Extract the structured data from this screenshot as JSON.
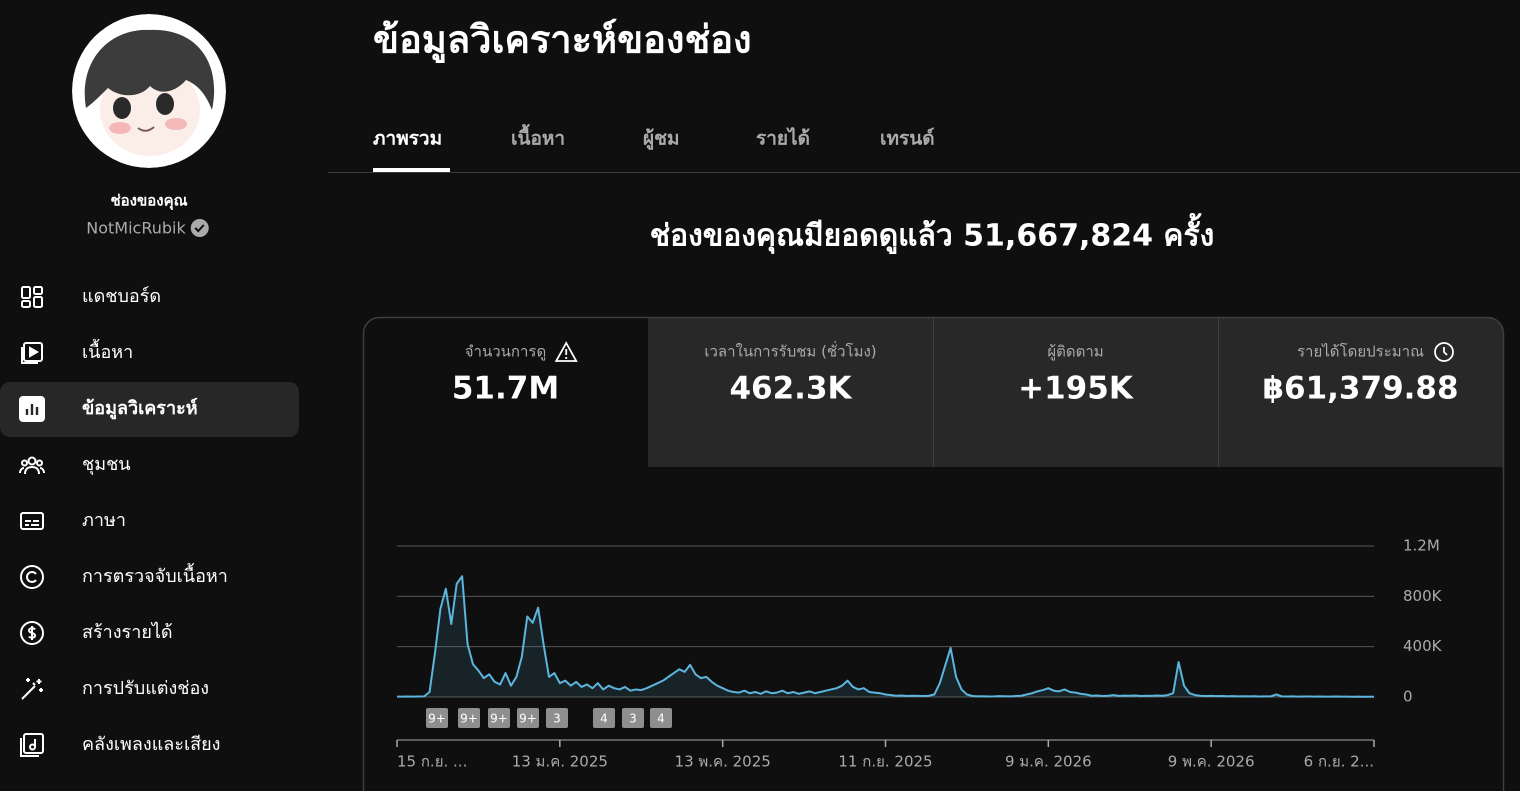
{
  "sidebar": {
    "channel_label": "ช่องของคุณ",
    "channel_name": "NotMicRubik",
    "nav": [
      "แดชบอร์ด",
      "เนื้อหา",
      "ข้อมูลวิเคราะห์",
      "ชุมชน",
      "ภาษา",
      "การตรวจจับเนื้อหา",
      "สร้างรายได้",
      "การปรับแต่งช่อง",
      "คลังเพลงและเสียง"
    ]
  },
  "header": {
    "title": "ข้อมูลวิเคราะห์ของช่อง",
    "tabs": [
      "ภาพรวม",
      "เนื้อหา",
      "ผู้ชม",
      "รายได้",
      "เทรนด์"
    ]
  },
  "summary": "ช่องของคุณมียอดดูแล้ว 51,667,824 ครั้ง",
  "cards": [
    {
      "title": "จำนวนการดู",
      "value": "51.7M"
    },
    {
      "title": "เวลาในการรับชม (ชั่วโมง)",
      "value": "462.3K"
    },
    {
      "title": "ผู้ติดตาม",
      "value": "+195K"
    },
    {
      "title": "รายได้โดยประมาณ",
      "value": "฿61,379.88"
    }
  ],
  "chart_data": {
    "type": "line",
    "color": "#5cb5dc",
    "grid": true,
    "ylim": [
      0,
      1200000
    ],
    "yticks": [
      0,
      {
        "value": 400000,
        "label": "400K"
      },
      {
        "value": 800000,
        "label": "800K"
      },
      {
        "value": 1200000,
        "label": "1.2M"
      }
    ],
    "categories": [
      "15 ก.ย. ...",
      null,
      null,
      null,
      null,
      null,
      null,
      null,
      null,
      null,
      null,
      null,
      null,
      null,
      null,
      null,
      null,
      null,
      null,
      null,
      null,
      null,
      null,
      null,
      null,
      null,
      null,
      null,
      null,
      null,
      "13 ม.ค. 2025",
      null,
      null,
      null,
      null,
      null,
      null,
      null,
      null,
      null,
      null,
      null,
      null,
      null,
      null,
      null,
      null,
      null,
      null,
      null,
      null,
      null,
      null,
      null,
      null,
      null,
      null,
      null,
      null,
      null,
      "13 พ.ค. 2025",
      null,
      null,
      null,
      null,
      null,
      null,
      null,
      null,
      null,
      null,
      null,
      null,
      null,
      null,
      null,
      null,
      null,
      null,
      null,
      null,
      null,
      null,
      null,
      null,
      null,
      null,
      null,
      null,
      null,
      "11 ก.ย. 2025",
      null,
      null,
      null,
      null,
      null,
      null,
      null,
      null,
      null,
      null,
      null,
      null,
      null,
      null,
      null,
      null,
      null,
      null,
      null,
      null,
      null,
      null,
      null,
      null,
      null,
      null,
      null,
      null,
      null,
      "9 ม.ค. 2026",
      null,
      null,
      null,
      null,
      null,
      null,
      null,
      null,
      null,
      null,
      null,
      null,
      null,
      null,
      null,
      null,
      null,
      null,
      null,
      null,
      null,
      null,
      null,
      null,
      null,
      null,
      null,
      null,
      null,
      "9 พ.ค. 2026",
      null,
      null,
      null,
      null,
      null,
      null,
      null,
      null,
      null,
      null,
      null,
      null,
      null,
      null,
      null,
      null,
      null,
      null,
      null,
      null,
      null,
      null,
      null,
      null,
      null,
      null,
      null,
      null,
      null,
      "6 ก.ย. 2..."
    ],
    "values": [
      3000,
      3000,
      4000,
      3000,
      4000,
      5000,
      40000,
      350000,
      700000,
      860000,
      580000,
      900000,
      960000,
      420000,
      260000,
      210000,
      150000,
      180000,
      120000,
      100000,
      190000,
      90000,
      160000,
      320000,
      640000,
      590000,
      710000,
      420000,
      160000,
      190000,
      110000,
      130000,
      90000,
      120000,
      80000,
      100000,
      70000,
      110000,
      60000,
      90000,
      70000,
      60000,
      80000,
      50000,
      60000,
      55000,
      70000,
      90000,
      110000,
      130000,
      160000,
      190000,
      220000,
      200000,
      255000,
      180000,
      150000,
      160000,
      120000,
      90000,
      70000,
      50000,
      40000,
      35000,
      50000,
      30000,
      40000,
      25000,
      45000,
      30000,
      35000,
      50000,
      30000,
      40000,
      25000,
      35000,
      45000,
      30000,
      40000,
      50000,
      60000,
      70000,
      90000,
      130000,
      80000,
      60000,
      70000,
      40000,
      35000,
      30000,
      20000,
      15000,
      10000,
      12000,
      8000,
      10000,
      9000,
      8000,
      10000,
      20000,
      110000,
      250000,
      390000,
      160000,
      60000,
      20000,
      8000,
      5000,
      6000,
      4000,
      5000,
      7000,
      6000,
      5000,
      8000,
      10000,
      20000,
      30000,
      45000,
      55000,
      70000,
      50000,
      45000,
      60000,
      40000,
      35000,
      25000,
      20000,
      10000,
      12000,
      8000,
      10000,
      15000,
      9000,
      11000,
      10000,
      12000,
      8000,
      10000,
      9000,
      12000,
      10000,
      15000,
      30000,
      278000,
      90000,
      30000,
      15000,
      10000,
      8000,
      9000,
      7000,
      8000,
      6000,
      7000,
      5000,
      6000,
      5000,
      6000,
      4000,
      5000,
      5000,
      20000,
      5000,
      4000,
      5000,
      3000,
      4000,
      4000,
      3000,
      4000,
      3000,
      3000,
      4000,
      3000,
      3000,
      2000,
      3000,
      2000,
      2000,
      2000
    ],
    "markers": [
      "9+",
      "9+",
      "9+",
      "9+",
      "3",
      "4",
      "3",
      "4"
    ]
  }
}
